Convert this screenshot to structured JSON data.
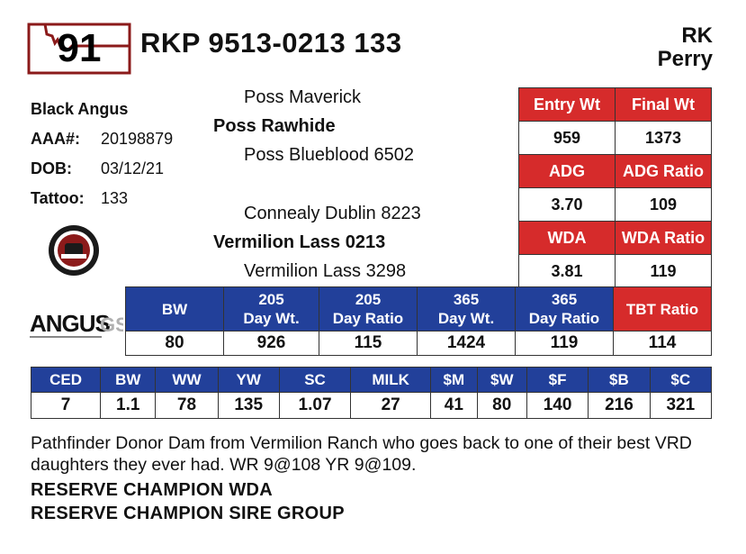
{
  "lot": {
    "number": "91"
  },
  "animal": {
    "registration_title": "RKP 9513-0213 133",
    "breed": "Black Angus",
    "aaa_label": "AAA#:",
    "aaa_number": "20198879",
    "dob_label": "DOB:",
    "dob": "03/12/21",
    "tattoo_label": "Tattoo:",
    "tattoo": "133"
  },
  "consignor": {
    "line1": "RK",
    "line2": "Perry"
  },
  "pedigree": {
    "sire_sire": "Poss Maverick",
    "sire": "Poss Rawhide",
    "sire_dam": "Poss Blueblood 6502",
    "dam_sire": "Connealy Dublin 8223",
    "dam": "Vermilion Lass 0213",
    "dam_dam": "Vermilion Lass 3298"
  },
  "performance": {
    "entry_wt_label": "Entry Wt",
    "final_wt_label": "Final Wt",
    "entry_wt": "959",
    "final_wt": "1373",
    "adg_label": "ADG",
    "adg_ratio_label": "ADG Ratio",
    "adg": "3.70",
    "adg_ratio": "109",
    "wda_label": "WDA",
    "wda_ratio_label": "WDA Ratio",
    "wda": "3.81",
    "wda_ratio": "119"
  },
  "weights": {
    "headers": [
      {
        "line1": "BW",
        "line2": ""
      },
      {
        "line1": "205",
        "line2": "Day Wt."
      },
      {
        "line1": "205",
        "line2": "Day Ratio"
      },
      {
        "line1": "365",
        "line2": "Day Wt."
      },
      {
        "line1": "365",
        "line2": "Day Ratio"
      },
      {
        "line1": "TBT Ratio",
        "line2": ""
      }
    ],
    "values": [
      "80",
      "926",
      "115",
      "1424",
      "119",
      "114"
    ]
  },
  "epd": {
    "headers": [
      "CED",
      "BW",
      "WW",
      "YW",
      "SC",
      "MILK",
      "$M",
      "$W",
      "$F",
      "$B",
      "$C"
    ],
    "values": [
      "7",
      "1.1",
      "78",
      "135",
      "1.07",
      "27",
      "41",
      "80",
      "140",
      "216",
      "321"
    ]
  },
  "comment": "Pathfinder Donor Dam from Vermilion Ranch who goes back to one of their best VRD daughters they ever had. WR 9@108 YR 9@109.",
  "awards": [
    "RESERVE CHAMPION WDA",
    "RESERVE CHAMPION SIRE GROUP"
  ],
  "logos": {
    "angus_text": "ANGUS",
    "angus_suffix": "GS"
  },
  "colors": {
    "red": "#d62b2b",
    "blue": "#22409a",
    "badge_outline": "#8b1a1a"
  },
  "icons": [
    "montana-state-outline-icon",
    "certified-seal-icon",
    "angus-gs-logo-icon"
  ]
}
